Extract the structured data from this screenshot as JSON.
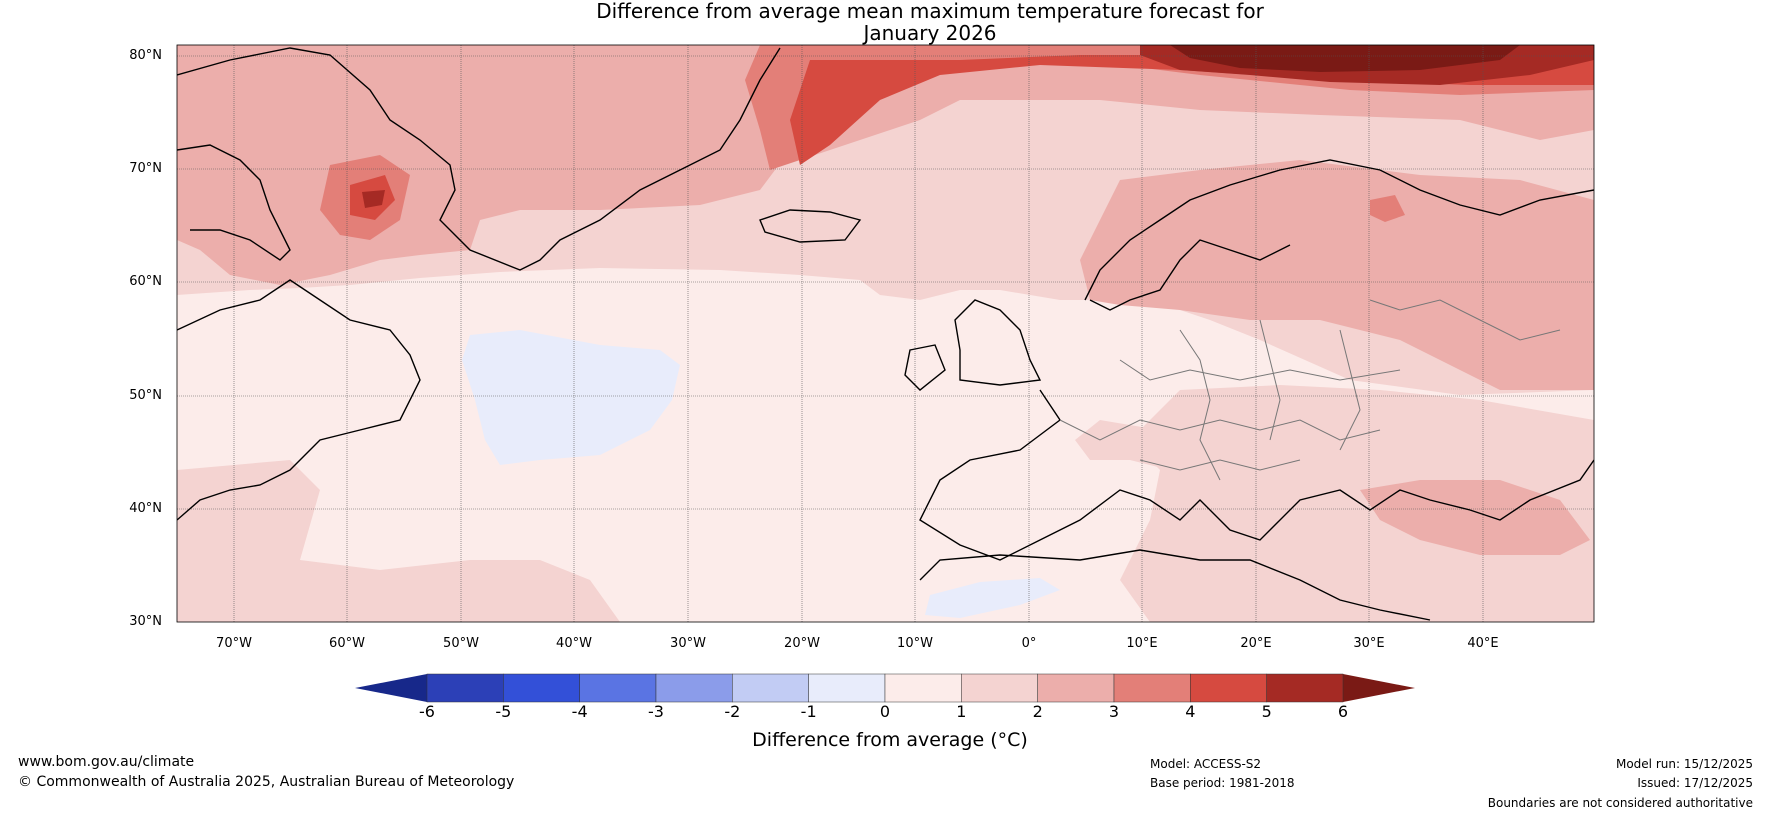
{
  "title": {
    "line1": "Difference from average mean maximum temperature forecast for",
    "line2": "January 2026"
  },
  "lat_labels": [
    "80°N",
    "70°N",
    "60°N",
    "50°N",
    "40°N",
    "30°N"
  ],
  "lon_labels": [
    "70°W",
    "60°W",
    "50°W",
    "40°W",
    "30°W",
    "20°W",
    "10°W",
    "0°",
    "10°E",
    "20°E",
    "30°E",
    "40°E"
  ],
  "colorbar": {
    "label": "Difference from average (°C)",
    "ticks": [
      "-6",
      "-5",
      "-4",
      "-3",
      "-2",
      "-1",
      "0",
      "1",
      "2",
      "3",
      "4",
      "5",
      "6"
    ],
    "colors": [
      "#17288a",
      "#2c40b7",
      "#3350d8",
      "#5a74e3",
      "#8b9cea",
      "#c2ccf4",
      "#e8ecfb",
      "#fcecea",
      "#f4d3d1",
      "#ecaeab",
      "#e37f78",
      "#d64a40",
      "#a52a24",
      "#7a1a15"
    ]
  },
  "footer": {
    "url": "www.bom.gov.au/climate",
    "copyright": "© Commonwealth of Australia 2025, Australian Bureau of Meteorology",
    "model": "Model: ACCESS-S2",
    "base_period": "Base period: 1981-2018",
    "model_run": "Model run: 15/12/2025",
    "issued": "Issued: 17/12/2025",
    "disclaimer": "Boundaries are not considered authoritative"
  }
}
